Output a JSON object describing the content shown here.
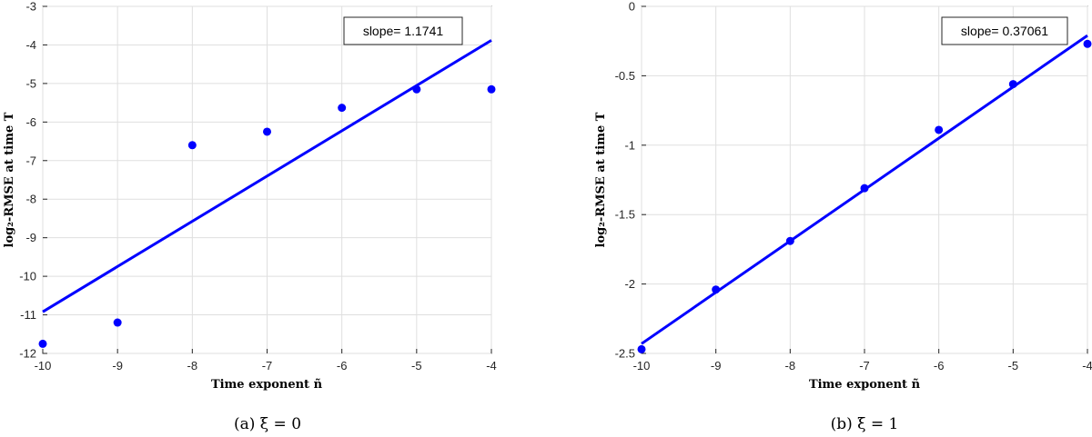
{
  "chart_data": [
    {
      "type": "scatter",
      "caption": "(a)  ξ = 0",
      "xlabel": "Time exponent ñ",
      "ylabel": "log₂-RMSE at time T",
      "xlim": [
        -10,
        -4
      ],
      "ylim": [
        -12,
        -3
      ],
      "xticks": [
        -10,
        -9,
        -8,
        -7,
        -6,
        -5,
        -4
      ],
      "yticks": [
        -12,
        -11,
        -10,
        -9,
        -8,
        -7,
        -6,
        -5,
        -4,
        -3
      ],
      "grid": true,
      "marker_color": "#0000ff",
      "points": [
        {
          "x": -10,
          "y": -11.75
        },
        {
          "x": -9,
          "y": -11.2
        },
        {
          "x": -8,
          "y": -6.6
        },
        {
          "x": -7,
          "y": -6.25
        },
        {
          "x": -6,
          "y": -5.63
        },
        {
          "x": -5,
          "y": -5.15
        },
        {
          "x": -4,
          "y": -5.15
        }
      ],
      "fit_line": {
        "x": [
          -10,
          -4
        ],
        "y": [
          -10.92,
          -3.88
        ]
      },
      "annotation": "slope= 1.1741",
      "annotation_position": "top-right"
    },
    {
      "type": "scatter",
      "caption": "(b)  ξ = 1",
      "xlabel": "Time exponent ñ",
      "ylabel": "log₂-RMSE at time T",
      "xlim": [
        -10,
        -4
      ],
      "ylim": [
        -2.5,
        0
      ],
      "xticks": [
        -10,
        -9,
        -8,
        -7,
        -6,
        -5,
        -4
      ],
      "yticks": [
        -2.5,
        -2,
        -1.5,
        -1,
        -0.5,
        0
      ],
      "grid": true,
      "marker_color": "#0000ff",
      "points": [
        {
          "x": -10,
          "y": -2.47
        },
        {
          "x": -9,
          "y": -2.04
        },
        {
          "x": -8,
          "y": -1.69
        },
        {
          "x": -7,
          "y": -1.31
        },
        {
          "x": -6,
          "y": -0.89
        },
        {
          "x": -5,
          "y": -0.56
        },
        {
          "x": -4,
          "y": -0.27
        }
      ],
      "fit_line": {
        "x": [
          -10,
          -4
        ],
        "y": [
          -2.43,
          -0.21
        ]
      },
      "annotation": "slope= 0.37061",
      "annotation_position": "top-right"
    }
  ]
}
